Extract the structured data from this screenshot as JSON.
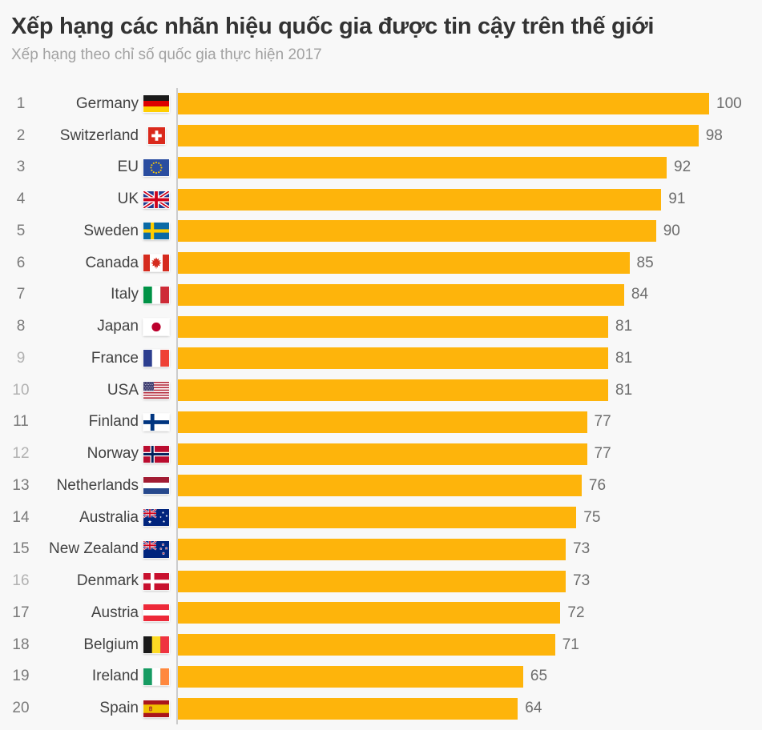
{
  "header": {
    "title": "Xếp hạng các nhãn hiệu quốc gia được tin cậy trên thế giới",
    "subtitle": "Xếp hạng theo chỉ số quốc gia thực hiện 2017"
  },
  "colors": {
    "background": "#f8f8f8",
    "bar": "#feb40b",
    "axis_line": "#cccccc",
    "rank_text": "#7a7a7a",
    "rank_text_tied": "#b2b2b2",
    "country_text": "#414141",
    "value_text": "#6d6d6d",
    "title_text": "#333333",
    "subtitle_text": "#a2a2a2"
  },
  "chart_data": {
    "type": "bar",
    "orientation": "horizontal",
    "title": "Xếp hạng các nhãn hiệu quốc gia được tin cậy trên thế giới",
    "subtitle": "Xếp hạng theo chỉ số quốc gia thực hiện 2017",
    "categories": [
      "Germany",
      "Switzerland",
      "EU",
      "UK",
      "Sweden",
      "Canada",
      "Italy",
      "Japan",
      "France",
      "USA",
      "Finland",
      "Norway",
      "Netherlands",
      "Australia",
      "New Zealand",
      "Denmark",
      "Austria",
      "Belgium",
      "Ireland",
      "Spain"
    ],
    "values": [
      100,
      98,
      92,
      91,
      90,
      85,
      84,
      81,
      81,
      81,
      77,
      77,
      76,
      75,
      73,
      73,
      72,
      71,
      65,
      64
    ],
    "ranks": [
      1,
      2,
      3,
      4,
      5,
      6,
      7,
      8,
      9,
      10,
      11,
      12,
      13,
      14,
      15,
      16,
      17,
      18,
      19,
      20
    ],
    "flags": [
      "de",
      "ch",
      "eu",
      "uk",
      "se",
      "ca",
      "it",
      "jp",
      "fr",
      "us",
      "fi",
      "no",
      "nl",
      "au",
      "nz",
      "dk",
      "at",
      "be",
      "ie",
      "es"
    ],
    "tied_ranks": [
      9,
      10,
      12,
      16
    ],
    "xlim": [
      0,
      100
    ],
    "grid": false,
    "legend": "none",
    "bar_color": "#feb40b",
    "value_labels": "outside-end"
  }
}
